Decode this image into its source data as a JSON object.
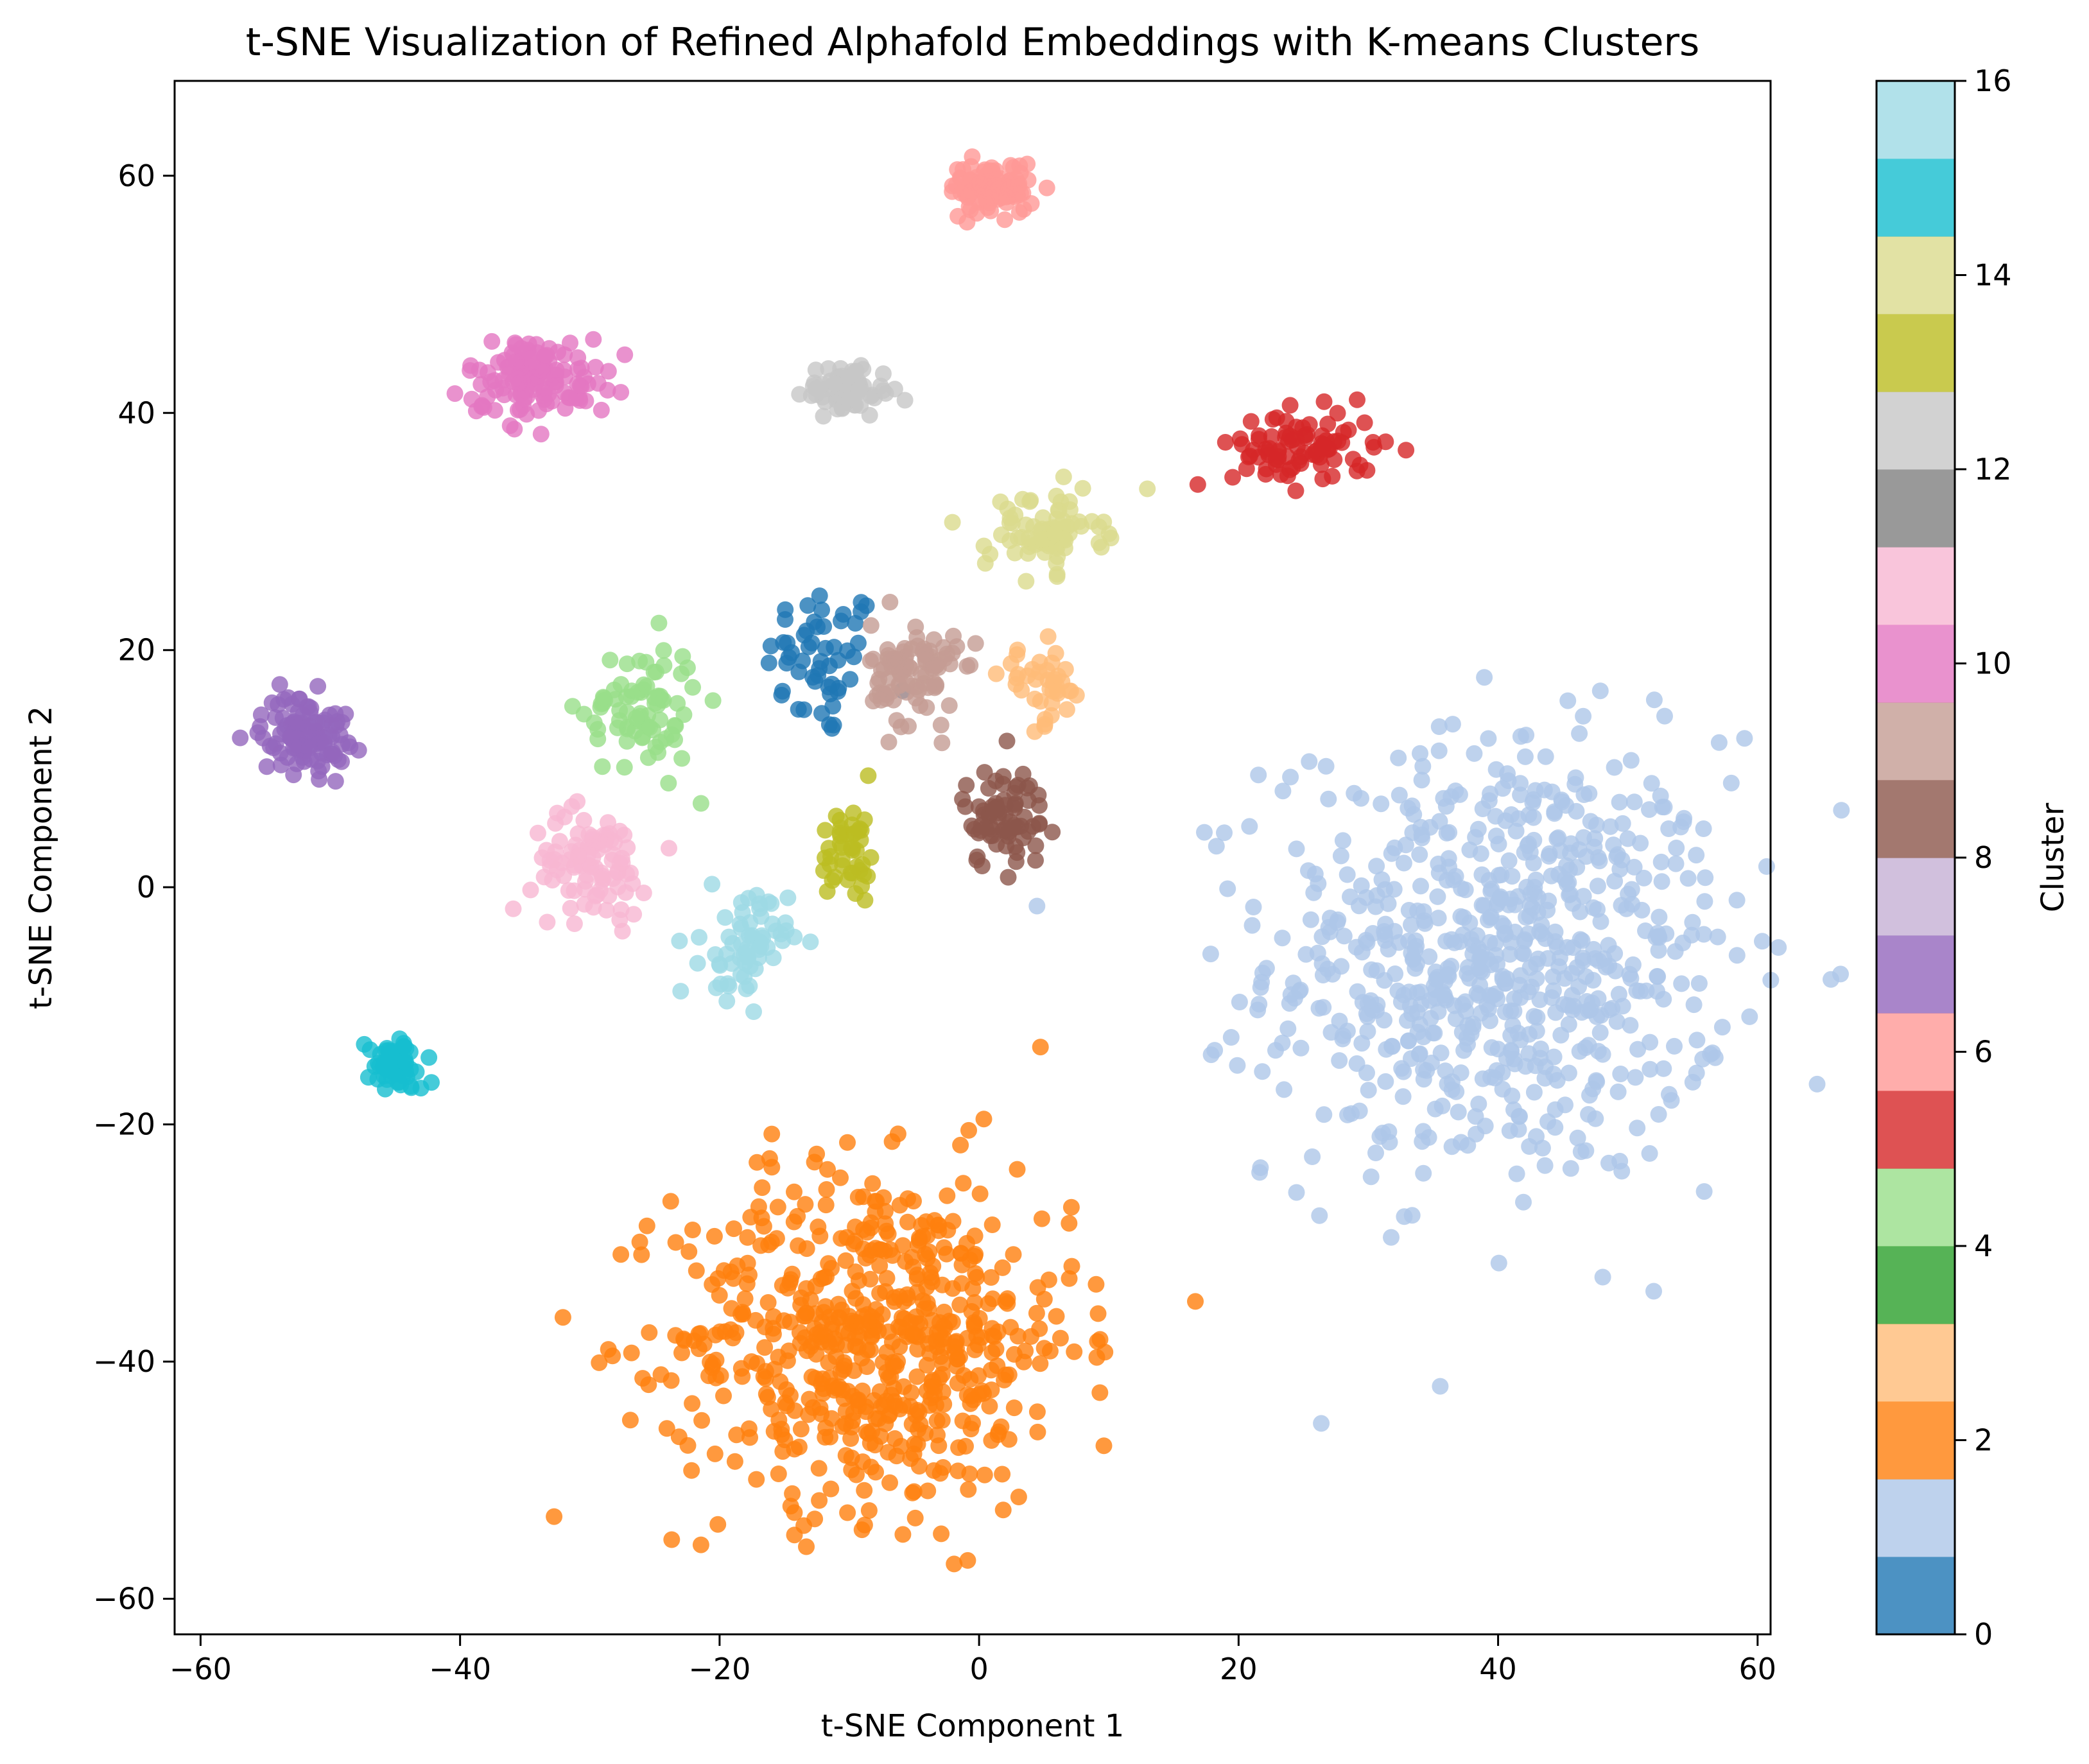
{
  "chart_data": {
    "type": "scatter",
    "title": "t-SNE Visualization of Refined Alphafold Embeddings with K-means Clusters",
    "xlabel": "t-SNE Component 1",
    "ylabel": "t-SNE Component 2",
    "xlim": [
      -62,
      61
    ],
    "ylim": [
      -63,
      68
    ],
    "xticks": [
      -60,
      -40,
      -20,
      0,
      20,
      40,
      60
    ],
    "xtick_labels": [
      "−60",
      "−40",
      "−20",
      "0",
      "20",
      "40",
      "60"
    ],
    "yticks": [
      -60,
      -40,
      -20,
      0,
      20,
      40,
      60
    ],
    "ytick_labels": [
      "−60",
      "−40",
      "−20",
      "0",
      "20",
      "40",
      "60"
    ],
    "grid": false,
    "colorbar": {
      "label": "Cluster",
      "range": [
        0,
        16
      ],
      "ticks": [
        0,
        2,
        4,
        6,
        8,
        10,
        12,
        14,
        16
      ],
      "tick_labels": [
        "0",
        "2",
        "4",
        "6",
        "8",
        "10",
        "12",
        "14",
        "16"
      ],
      "colormap": "tab20",
      "band_colors": [
        "#1f77b4",
        "#aec7e8",
        "#ff7f0e",
        "#ffbb78",
        "#2ca02c",
        "#98df8a",
        "#d62728",
        "#ff9896",
        "#9467bd",
        "#c5b0d5",
        "#8c564b",
        "#c49c94",
        "#e377c2",
        "#f7b6d2",
        "#7f7f7f",
        "#c7c7c7",
        "#bcbd22",
        "#dbdb8d",
        "#17becf",
        "#9edae5"
      ]
    },
    "clusters": [
      {
        "cluster": 0,
        "color": "#1f77b4",
        "center": [
          -12,
          19
        ],
        "spread": [
          4,
          6
        ],
        "n": 55
      },
      {
        "cluster": 1,
        "color": "#aec7e8",
        "center": [
          40,
          -6
        ],
        "spread": [
          16,
          17
        ],
        "n": 700
      },
      {
        "cluster": 2,
        "color": "#ff7f0e",
        "center": [
          -8,
          -38
        ],
        "spread": [
          14,
          13
        ],
        "n": 620
      },
      {
        "cluster": 3,
        "color": "#ffbb78",
        "center": [
          5,
          17
        ],
        "spread": [
          3,
          3
        ],
        "n": 40
      },
      {
        "cluster": 4,
        "color": "#98df8a",
        "center": [
          -26,
          15
        ],
        "spread": [
          4,
          5
        ],
        "n": 80
      },
      {
        "cluster": 5,
        "color": "#d62728",
        "center": [
          25,
          37
        ],
        "spread": [
          5,
          3
        ],
        "n": 90
      },
      {
        "cluster": 6,
        "color": "#ff9896",
        "center": [
          1,
          59
        ],
        "spread": [
          3,
          2
        ],
        "n": 90
      },
      {
        "cluster": 7,
        "color": "#9467bd",
        "center": [
          -52,
          13
        ],
        "spread": [
          3,
          3
        ],
        "n": 110
      },
      {
        "cluster": 8,
        "color": "#8c564b",
        "center": [
          2,
          6
        ],
        "spread": [
          3,
          4
        ],
        "n": 75
      },
      {
        "cluster": 9,
        "color": "#c49c94",
        "center": [
          -5,
          18
        ],
        "spread": [
          3,
          4
        ],
        "n": 95
      },
      {
        "cluster": 10,
        "color": "#e377c2",
        "center": [
          -34,
          43
        ],
        "spread": [
          5,
          3
        ],
        "n": 130
      },
      {
        "cluster": 11,
        "color": "#f7b6d2",
        "center": [
          -30,
          2
        ],
        "spread": [
          4,
          4
        ],
        "n": 95
      },
      {
        "cluster": 12,
        "color": "#c7c7c7",
        "center": [
          -10,
          42
        ],
        "spread": [
          3,
          2
        ],
        "n": 70
      },
      {
        "cluster": 13,
        "color": "#bcbd22",
        "center": [
          -10,
          3
        ],
        "spread": [
          2,
          4
        ],
        "n": 45
      },
      {
        "cluster": 14,
        "color": "#dbdb8d",
        "center": [
          5,
          30
        ],
        "spread": [
          4,
          3
        ],
        "n": 75
      },
      {
        "cluster": 15,
        "color": "#17becf",
        "center": [
          -45,
          -15
        ],
        "spread": [
          2,
          2
        ],
        "n": 70
      },
      {
        "cluster": 16,
        "color": "#9edae5",
        "center": [
          -18,
          -5
        ],
        "spread": [
          3,
          4
        ],
        "n": 65
      }
    ]
  }
}
